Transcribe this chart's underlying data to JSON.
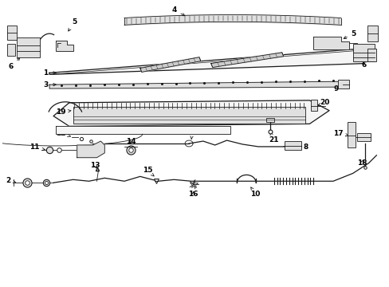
{
  "bg_color": "#ffffff",
  "line_color": "#1a1a1a",
  "label_color": "#000000",
  "lw_thin": 0.6,
  "lw_med": 0.9,
  "lw_thick": 1.3,
  "label_fontsize": 6.5
}
